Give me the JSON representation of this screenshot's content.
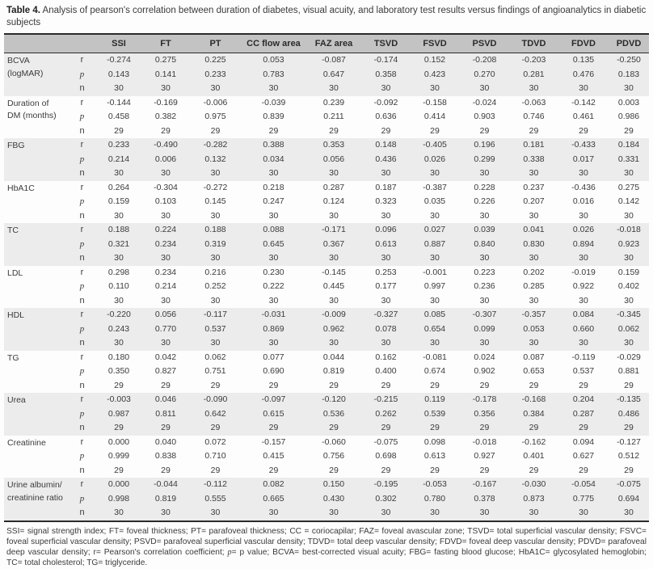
{
  "caption": {
    "label": "Table 4.",
    "text": " Analysis of pearson's correlation between duration of diabetes, visual acuity, and laboratory test results versus findings of angioanalytics in diabetic subjects"
  },
  "table": {
    "columns": [
      "SSI",
      "FT",
      "PT",
      "CC flow area",
      "FAZ area",
      "TSVD",
      "FSVD",
      "PSVD",
      "TDVD",
      "FDVD",
      "PDVD"
    ],
    "stat_labels": [
      "r",
      "p",
      "n"
    ],
    "sections": [
      {
        "variable_lines": [
          "BCVA",
          "(logMAR)"
        ],
        "r": [
          "-0.274",
          "0.275",
          "0.225",
          "0.053",
          "-0.087",
          "-0.174",
          "0.152",
          "-0.208",
          "-0.203",
          "0.135",
          "-0.250"
        ],
        "p": [
          "0.143",
          "0.141",
          "0.233",
          "0.783",
          "0.647",
          "0.358",
          "0.423",
          "0.270",
          "0.281",
          "0.476",
          "0.183"
        ],
        "n": [
          "30",
          "30",
          "30",
          "30",
          "30",
          "30",
          "30",
          "30",
          "30",
          "30",
          "30"
        ]
      },
      {
        "variable_lines": [
          "Duration of",
          "DM (months)"
        ],
        "r": [
          "-0.144",
          "-0.169",
          "-0.006",
          "-0.039",
          "0.239",
          "-0.092",
          "-0.158",
          "-0.024",
          "-0.063",
          "-0.142",
          "0.003"
        ],
        "p": [
          "0.458",
          "0.382",
          "0.975",
          "0.839",
          "0.211",
          "0.636",
          "0.414",
          "0.903",
          "0.746",
          "0.461",
          "0.986"
        ],
        "n": [
          "29",
          "29",
          "29",
          "29",
          "29",
          "29",
          "29",
          "29",
          "29",
          "29",
          "29"
        ]
      },
      {
        "variable_lines": [
          "FBG"
        ],
        "r": [
          "0.233",
          "-0.490",
          "-0.282",
          "0.388",
          "0.353",
          "0.148",
          "-0.405",
          "0.196",
          "0.181",
          "-0.433",
          "0.184"
        ],
        "p": [
          "0.214",
          "0.006",
          "0.132",
          "0.034",
          "0.056",
          "0.436",
          "0.026",
          "0.299",
          "0.338",
          "0.017",
          "0.331"
        ],
        "n": [
          "30",
          "30",
          "30",
          "30",
          "30",
          "30",
          "30",
          "30",
          "30",
          "30",
          "30"
        ]
      },
      {
        "variable_lines": [
          "HbA1C"
        ],
        "r": [
          "0.264",
          "-0.304",
          "-0.272",
          "0.218",
          "0.287",
          "0.187",
          "-0.387",
          "0.228",
          "0.237",
          "-0.436",
          "0.275"
        ],
        "p": [
          "0.159",
          "0.103",
          "0.145",
          "0.247",
          "0.124",
          "0.323",
          "0.035",
          "0.226",
          "0.207",
          "0.016",
          "0.142"
        ],
        "n": [
          "30",
          "30",
          "30",
          "30",
          "30",
          "30",
          "30",
          "30",
          "30",
          "30",
          "30"
        ]
      },
      {
        "variable_lines": [
          "TC"
        ],
        "r": [
          "0.188",
          "0.224",
          "0.188",
          "0.088",
          "-0.171",
          "0.096",
          "0.027",
          "0.039",
          "0.041",
          "0.026",
          "-0.018"
        ],
        "p": [
          "0.321",
          "0.234",
          "0.319",
          "0.645",
          "0.367",
          "0.613",
          "0.887",
          "0.840",
          "0.830",
          "0.894",
          "0.923"
        ],
        "n": [
          "30",
          "30",
          "30",
          "30",
          "30",
          "30",
          "30",
          "30",
          "30",
          "30",
          "30"
        ]
      },
      {
        "variable_lines": [
          "LDL"
        ],
        "r": [
          "0.298",
          "0.234",
          "0.216",
          "0.230",
          "-0.145",
          "0.253",
          "-0.001",
          "0.223",
          "0.202",
          "-0.019",
          "0.159"
        ],
        "p": [
          "0.110",
          "0.214",
          "0.252",
          "0.222",
          "0.445",
          "0.177",
          "0.997",
          "0.236",
          "0.285",
          "0.922",
          "0.402"
        ],
        "n": [
          "30",
          "30",
          "30",
          "30",
          "30",
          "30",
          "30",
          "30",
          "30",
          "30",
          "30"
        ]
      },
      {
        "variable_lines": [
          "HDL"
        ],
        "r": [
          "-0.220",
          "0.056",
          "-0.117",
          "-0.031",
          "-0.009",
          "-0.327",
          "0.085",
          "-0.307",
          "-0.357",
          "0.084",
          "-0.345"
        ],
        "p": [
          "0.243",
          "0.770",
          "0.537",
          "0.869",
          "0.962",
          "0.078",
          "0.654",
          "0.099",
          "0.053",
          "0.660",
          "0.062"
        ],
        "n": [
          "30",
          "30",
          "30",
          "30",
          "30",
          "30",
          "30",
          "30",
          "30",
          "30",
          "30"
        ]
      },
      {
        "variable_lines": [
          "TG"
        ],
        "r": [
          "0.180",
          "0.042",
          "0.062",
          "0.077",
          "0.044",
          "0.162",
          "-0.081",
          "0.024",
          "0.087",
          "-0.119",
          "-0.029"
        ],
        "p": [
          "0.350",
          "0.827",
          "0.751",
          "0.690",
          "0.819",
          "0.400",
          "0.674",
          "0.902",
          "0.653",
          "0.537",
          "0.881"
        ],
        "n": [
          "29",
          "29",
          "29",
          "29",
          "29",
          "29",
          "29",
          "29",
          "29",
          "29",
          "29"
        ]
      },
      {
        "variable_lines": [
          "Urea"
        ],
        "r": [
          "-0.003",
          "0.046",
          "-0.090",
          "-0.097",
          "-0.120",
          "-0.215",
          "0.119",
          "-0.178",
          "-0.168",
          "0.204",
          "-0.135"
        ],
        "p": [
          "0.987",
          "0.811",
          "0.642",
          "0.615",
          "0.536",
          "0.262",
          "0.539",
          "0.356",
          "0.384",
          "0.287",
          "0.486"
        ],
        "n": [
          "29",
          "29",
          "29",
          "29",
          "29",
          "29",
          "29",
          "29",
          "29",
          "29",
          "29"
        ]
      },
      {
        "variable_lines": [
          "Creatinine"
        ],
        "r": [
          "0.000",
          "0.040",
          "0.072",
          "-0.157",
          "-0.060",
          "-0.075",
          "0.098",
          "-0.018",
          "-0.162",
          "0.094",
          "-0.127"
        ],
        "p": [
          "0.999",
          "0.838",
          "0.710",
          "0.415",
          "0.756",
          "0.698",
          "0.613",
          "0.927",
          "0.401",
          "0.627",
          "0.512"
        ],
        "n": [
          "29",
          "29",
          "29",
          "29",
          "29",
          "29",
          "29",
          "29",
          "29",
          "29",
          "29"
        ]
      },
      {
        "variable_lines": [
          "Urine albumin/",
          "creatinine ratio"
        ],
        "r": [
          "0.000",
          "-0.044",
          "-0.112",
          "0.082",
          "0.150",
          "-0.195",
          "-0.053",
          "-0.167",
          "-0.030",
          "-0.054",
          "-0.075"
        ],
        "p": [
          "0.998",
          "0.819",
          "0.555",
          "0.665",
          "0.430",
          "0.302",
          "0.780",
          "0.378",
          "0.873",
          "0.775",
          "0.694"
        ],
        "n": [
          "30",
          "30",
          "30",
          "30",
          "30",
          "30",
          "30",
          "30",
          "30",
          "30",
          "30"
        ]
      }
    ]
  },
  "footnote": {
    "segments": [
      {
        "text": "SSI= signal strength index; FT= foveal thickness; PT= parafoveal thickness; CC = coriocapilar; FAZ= foveal avascular zone; TSVD= total superficial vascular density; FSVC= foveal superficial vascular density; PSVD= parafoveal superficial vascular density; TDVD= total deep vascular density; FDVD= foveal deep vascular density; PDVD= parafoveal deep vascular density; r= Pearson's correlation coefficient; ",
        "italic": false
      },
      {
        "text": "p",
        "italic": true
      },
      {
        "text": "= p value; BCVA= best-corrected visual acuity; FBG= fasting blood glucose; HbA1C= glycosylated hemoglobin; TC= total cholesterol; TG= triglyceride.",
        "italic": false
      }
    ]
  },
  "colors": {
    "header_bg": "#c3c3c3",
    "stripe_bg": "#ececec",
    "text": "#3b3b3b",
    "rule": "#2b2b2b"
  }
}
